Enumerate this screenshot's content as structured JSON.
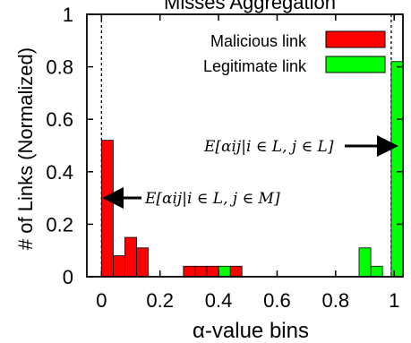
{
  "chart_data": {
    "type": "bar",
    "xlabel": "α-value bins",
    "ylabel": "# of Links (Normalized)",
    "xlim": [
      -0.05,
      1.03
    ],
    "ylim": [
      0,
      1
    ],
    "x_ticks": [
      {
        "value": 0,
        "label": "0"
      },
      {
        "value": 0.2,
        "label": "0.2"
      },
      {
        "value": 0.4,
        "label": "0.4"
      },
      {
        "value": 0.6,
        "label": "0.6"
      },
      {
        "value": 0.8,
        "label": "0.8"
      },
      {
        "value": 1,
        "label": "1"
      }
    ],
    "y_ticks": [
      {
        "value": 0,
        "label": "0"
      },
      {
        "value": 0.2,
        "label": "0.2"
      },
      {
        "value": 0.4,
        "label": "0.4"
      },
      {
        "value": 0.6,
        "label": "0.6"
      },
      {
        "value": 0.8,
        "label": "0.8"
      },
      {
        "value": 1,
        "label": "1"
      }
    ],
    "bin_width": 0.04,
    "legend_position": "top-right",
    "series": [
      {
        "name": "Malicious link",
        "color": "#ff0000",
        "bins": [
          {
            "x": 0.0,
            "value": 0.52
          },
          {
            "x": 0.04,
            "value": 0.08
          },
          {
            "x": 0.08,
            "value": 0.15
          },
          {
            "x": 0.12,
            "value": 0.11
          },
          {
            "x": 0.28,
            "value": 0.04
          },
          {
            "x": 0.32,
            "value": 0.04
          },
          {
            "x": 0.36,
            "value": 0.04
          },
          {
            "x": 0.44,
            "value": 0.04
          }
        ]
      },
      {
        "name": "Legitimate link",
        "color": "#00ff00",
        "bins": [
          {
            "x": 0.4,
            "value": 0.04
          },
          {
            "x": 0.88,
            "value": 0.11
          },
          {
            "x": 0.92,
            "value": 0.04
          },
          {
            "x": 0.99,
            "value": 0.82
          }
        ]
      }
    ],
    "reference_lines": [
      0.0,
      0.99
    ],
    "annotations": [
      {
        "text": "E[αij|i ∈ L, j ∈ M]",
        "points_to": {
          "x": 0.0,
          "y": 0.3
        }
      },
      {
        "text": "E[αij|i ∈ L, j ∈ L]",
        "points_to": {
          "x": 0.99,
          "y": 0.51
        }
      }
    ],
    "partial_title": "Misses Aggregation"
  }
}
